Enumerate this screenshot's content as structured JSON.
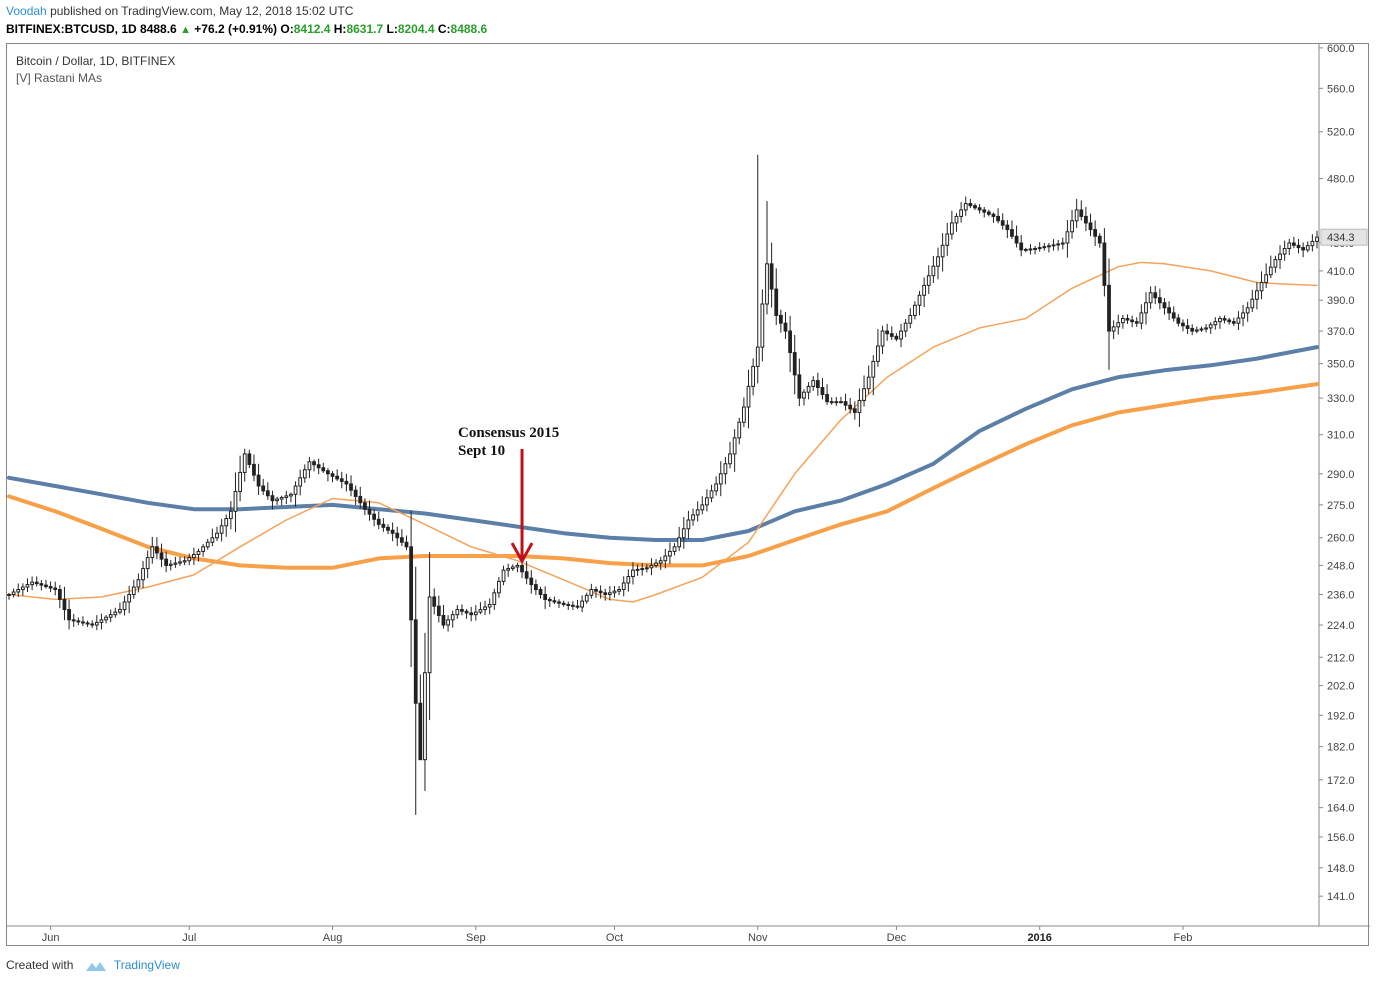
{
  "header": {
    "author": "Voodah",
    "published_text": "published on TradingView.com, May 12, 2018 15:02 UTC",
    "symbol": "BITFINEX:BTCUSD, 1D",
    "last": "8488.6",
    "change": "+76.2 (+0.91%)",
    "open_label": "O:",
    "open": "8412.4",
    "high_label": "H:",
    "high": "8631.7",
    "low_label": "L:",
    "low": "8204.4",
    "close_label": "C:",
    "close": "8488.6"
  },
  "legend": {
    "title": "Bitcoin / Dollar, 1D, BITFINEX",
    "indicator": "[V] Rastani MAs"
  },
  "footer": {
    "created_with": "Created with",
    "brand": "TradingView"
  },
  "colors": {
    "candle": "#222222",
    "ma_fast": "#f5a35a",
    "ma_slow_orange": "#f7a048",
    "ma_slow_blue": "#5b7fa6",
    "annotation_arrow": "#c0101a",
    "price_label_bg": "#e4e4e4"
  },
  "chart_data": {
    "type": "candlestick",
    "title": "Bitcoin / Dollar, 1D, BITFINEX",
    "y_scale": "log",
    "ylim": [
      134,
      604
    ],
    "y_ticks": [
      141.0,
      148.0,
      156.0,
      164.0,
      172.0,
      182.0,
      192.0,
      202.0,
      212.0,
      224.0,
      236.0,
      248.0,
      260.0,
      275.0,
      290.0,
      310.0,
      330.0,
      350.0,
      370.0,
      390.0,
      410.0,
      430.0,
      480.0,
      520.0,
      560.0,
      600.0
    ],
    "x_ticks": [
      {
        "label": "Jun",
        "day": 9,
        "bold": false
      },
      {
        "label": "Jul",
        "day": 39,
        "bold": false
      },
      {
        "label": "Aug",
        "day": 70,
        "bold": false
      },
      {
        "label": "Sep",
        "day": 101,
        "bold": false
      },
      {
        "label": "Oct",
        "day": 131,
        "bold": false
      },
      {
        "label": "Nov",
        "day": 162,
        "bold": false
      },
      {
        "label": "Dec",
        "day": 192,
        "bold": false
      },
      {
        "label": "2016",
        "day": 223,
        "bold": true
      },
      {
        "label": "Feb",
        "day": 254,
        "bold": false
      }
    ],
    "x_range": [
      0,
      283
    ],
    "last_price_label": "434.3",
    "last_price": 434.3,
    "annotation": {
      "text_line1": "Consensus 2015",
      "text_line2": "Sept 10",
      "day": 111,
      "price": 249
    },
    "close_path": [
      [
        0,
        236
      ],
      [
        5,
        241
      ],
      [
        10,
        238
      ],
      [
        13,
        226
      ],
      [
        18,
        224
      ],
      [
        24,
        230
      ],
      [
        28,
        242
      ],
      [
        31,
        256
      ],
      [
        34,
        248
      ],
      [
        38,
        250
      ],
      [
        41,
        254
      ],
      [
        45,
        262
      ],
      [
        48,
        272
      ],
      [
        51,
        300
      ],
      [
        54,
        284
      ],
      [
        57,
        277
      ],
      [
        61,
        280
      ],
      [
        65,
        296
      ],
      [
        69,
        290
      ],
      [
        73,
        285
      ],
      [
        77,
        273
      ],
      [
        80,
        266
      ],
      [
        83,
        262
      ],
      [
        86,
        256
      ],
      [
        88,
        196
      ],
      [
        89,
        178
      ],
      [
        91,
        235
      ],
      [
        94,
        224
      ],
      [
        97,
        230
      ],
      [
        100,
        228
      ],
      [
        104,
        232
      ],
      [
        107,
        246
      ],
      [
        110,
        248
      ],
      [
        113,
        240
      ],
      [
        116,
        234
      ],
      [
        120,
        232
      ],
      [
        123,
        231
      ],
      [
        126,
        238
      ],
      [
        129,
        236
      ],
      [
        132,
        238
      ],
      [
        135,
        246
      ],
      [
        138,
        247
      ],
      [
        141,
        250
      ],
      [
        144,
        256
      ],
      [
        147,
        268
      ],
      [
        150,
        275
      ],
      [
        153,
        285
      ],
      [
        156,
        300
      ],
      [
        159,
        325
      ],
      [
        162,
        360
      ],
      [
        164,
        415
      ],
      [
        166,
        380
      ],
      [
        168,
        370
      ],
      [
        171,
        330
      ],
      [
        174,
        340
      ],
      [
        177,
        328
      ],
      [
        180,
        328
      ],
      [
        183,
        322
      ],
      [
        186,
        342
      ],
      [
        189,
        370
      ],
      [
        192,
        365
      ],
      [
        195,
        380
      ],
      [
        198,
        400
      ],
      [
        201,
        420
      ],
      [
        204,
        445
      ],
      [
        207,
        460
      ],
      [
        210,
        455
      ],
      [
        213,
        450
      ],
      [
        216,
        440
      ],
      [
        219,
        425
      ],
      [
        222,
        426
      ],
      [
        225,
        428
      ],
      [
        228,
        430
      ],
      [
        231,
        455
      ],
      [
        234,
        440
      ],
      [
        236,
        430
      ],
      [
        238,
        370
      ],
      [
        241,
        378
      ],
      [
        244,
        375
      ],
      [
        247,
        395
      ],
      [
        250,
        385
      ],
      [
        253,
        375
      ],
      [
        256,
        370
      ],
      [
        259,
        372
      ],
      [
        262,
        378
      ],
      [
        265,
        375
      ],
      [
        268,
        385
      ],
      [
        271,
        402
      ],
      [
        274,
        418
      ],
      [
        277,
        430
      ],
      [
        280,
        425
      ],
      [
        283,
        434.3
      ]
    ],
    "series": [
      {
        "key": "ma_fast",
        "points": [
          [
            0,
            236
          ],
          [
            10,
            234
          ],
          [
            20,
            235
          ],
          [
            30,
            239
          ],
          [
            40,
            244
          ],
          [
            50,
            256
          ],
          [
            60,
            268
          ],
          [
            70,
            278
          ],
          [
            80,
            276
          ],
          [
            90,
            266
          ],
          [
            100,
            256
          ],
          [
            110,
            250
          ],
          [
            120,
            242
          ],
          [
            130,
            234
          ],
          [
            135,
            233
          ],
          [
            140,
            236
          ],
          [
            150,
            243
          ],
          [
            160,
            258
          ],
          [
            170,
            290
          ],
          [
            180,
            318
          ],
          [
            190,
            342
          ],
          [
            200,
            360
          ],
          [
            210,
            372
          ],
          [
            215,
            375
          ],
          [
            220,
            378
          ],
          [
            230,
            398
          ],
          [
            240,
            413
          ],
          [
            245,
            416
          ],
          [
            250,
            415
          ],
          [
            260,
            410
          ],
          [
            270,
            402
          ],
          [
            275,
            401
          ],
          [
            283,
            400
          ]
        ]
      },
      {
        "key": "ma_slow_orange",
        "points": [
          [
            0,
            279
          ],
          [
            10,
            272
          ],
          [
            20,
            264
          ],
          [
            30,
            256
          ],
          [
            40,
            251
          ],
          [
            50,
            248
          ],
          [
            60,
            247
          ],
          [
            70,
            247
          ],
          [
            80,
            251
          ],
          [
            90,
            252
          ],
          [
            100,
            252
          ],
          [
            110,
            252
          ],
          [
            120,
            251
          ],
          [
            130,
            249
          ],
          [
            140,
            248
          ],
          [
            150,
            248
          ],
          [
            160,
            252
          ],
          [
            170,
            259
          ],
          [
            180,
            266
          ],
          [
            190,
            272
          ],
          [
            200,
            283
          ],
          [
            210,
            294
          ],
          [
            220,
            305
          ],
          [
            230,
            315
          ],
          [
            240,
            322
          ],
          [
            250,
            326
          ],
          [
            260,
            330
          ],
          [
            270,
            333
          ],
          [
            283,
            338
          ]
        ]
      },
      {
        "key": "ma_slow_blue",
        "points": [
          [
            0,
            288
          ],
          [
            10,
            284
          ],
          [
            20,
            280
          ],
          [
            30,
            276
          ],
          [
            40,
            273
          ],
          [
            50,
            273
          ],
          [
            60,
            274
          ],
          [
            70,
            275
          ],
          [
            80,
            273
          ],
          [
            90,
            271
          ],
          [
            100,
            268
          ],
          [
            110,
            265
          ],
          [
            120,
            262
          ],
          [
            130,
            260
          ],
          [
            140,
            259
          ],
          [
            150,
            259
          ],
          [
            160,
            263
          ],
          [
            170,
            272
          ],
          [
            180,
            277
          ],
          [
            190,
            285
          ],
          [
            200,
            295
          ],
          [
            210,
            312
          ],
          [
            220,
            324
          ],
          [
            230,
            335
          ],
          [
            240,
            342
          ],
          [
            250,
            346
          ],
          [
            260,
            349
          ],
          [
            270,
            353
          ],
          [
            283,
            360
          ]
        ]
      }
    ]
  }
}
